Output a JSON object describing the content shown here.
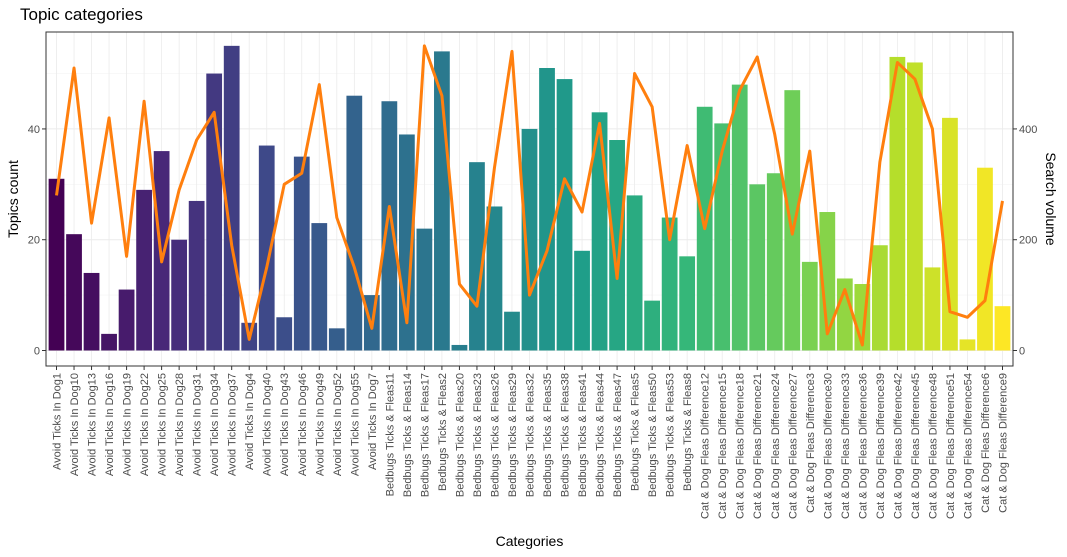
{
  "chart_data": {
    "type": "bar",
    "title": "Topic categories",
    "xlabel": "Categories",
    "ylabel": "Topics count",
    "y2label": "Search volume",
    "ylim": [
      -2.8,
      57.5
    ],
    "y_ticks": [
      0,
      20,
      40
    ],
    "y2lim": [
      -28,
      575
    ],
    "y2_ticks": [
      0,
      200,
      400
    ],
    "grid": true,
    "legend": "none",
    "line_color": "#ff7f0e",
    "bar_colormap": "viridis",
    "categories": [
      "Avoid Ticks In Dog1",
      "Avoid Ticks In Dog10",
      "Avoid Ticks In Dog13",
      "Avoid Ticks In Dog16",
      "Avoid Ticks In Dog19",
      "Avoid Ticks In Dog22",
      "Avoid Ticks In Dog25",
      "Avoid Ticks In Dog28",
      "Avoid Ticks In Dog31",
      "Avoid Ticks In Dog34",
      "Avoid Ticks In Dog37",
      "Avoid Ticks In Dog4",
      "Avoid Ticks In Dog40",
      "Avoid Ticks In Dog43",
      "Avoid Ticks In Dog46",
      "Avoid Ticks In Dog49",
      "Avoid Ticks In Dog52",
      "Avoid Ticks In Dog55",
      "Avoid Ticks In Dog7",
      "Bedbugs Ticks & Fleas11",
      "Bedbugs Ticks & Fleas14",
      "Bedbugs Ticks & Fleas17",
      "Bedbugs Ticks & Fleas2",
      "Bedbugs Ticks & Fleas20",
      "Bedbugs Ticks & Fleas23",
      "Bedbugs Ticks & Fleas26",
      "Bedbugs Ticks & Fleas29",
      "Bedbugs Ticks & Fleas32",
      "Bedbugs Ticks & Fleas35",
      "Bedbugs Ticks & Fleas38",
      "Bedbugs Ticks & Fleas41",
      "Bedbugs Ticks & Fleas44",
      "Bedbugs Ticks & Fleas47",
      "Bedbugs Ticks & Fleas5",
      "Bedbugs Ticks & Fleas50",
      "Bedbugs Ticks & Fleas53",
      "Bedbugs Ticks & Fleas8",
      "Cat & Dog Fleas Difference12",
      "Cat & Dog Fleas Difference15",
      "Cat & Dog Fleas Difference18",
      "Cat & Dog Fleas Difference21",
      "Cat & Dog Fleas Difference24",
      "Cat & Dog Fleas Difference27",
      "Cat & Dog Fleas Difference3",
      "Cat & Dog Fleas Difference30",
      "Cat & Dog Fleas Difference33",
      "Cat & Dog Fleas Difference36",
      "Cat & Dog Fleas Difference39",
      "Cat & Dog Fleas Difference42",
      "Cat & Dog Fleas Difference45",
      "Cat & Dog Fleas Difference48",
      "Cat & Dog Fleas Difference51",
      "Cat & Dog Fleas Difference54",
      "Cat & Dog Fleas Difference6",
      "Cat & Dog Fleas Difference9"
    ],
    "series": [
      {
        "type": "bar",
        "axis": "left",
        "values": [
          31,
          21,
          14,
          3,
          11,
          29,
          36,
          20,
          27,
          50,
          55,
          5,
          37,
          6,
          35,
          23,
          4,
          46,
          10,
          45,
          39,
          22,
          54,
          1,
          34,
          26,
          7,
          40,
          51,
          49,
          18,
          43,
          38,
          28,
          9,
          24,
          17,
          44,
          41,
          48,
          30,
          32,
          47,
          16,
          25,
          13,
          12,
          19,
          53,
          52,
          15,
          42,
          2,
          33,
          8
        ]
      },
      {
        "type": "line",
        "axis": "right",
        "values": [
          280,
          510,
          230,
          420,
          170,
          450,
          160,
          290,
          380,
          430,
          190,
          20,
          150,
          300,
          320,
          480,
          240,
          150,
          40,
          260,
          50,
          550,
          460,
          120,
          80,
          330,
          540,
          100,
          180,
          310,
          250,
          410,
          130,
          500,
          440,
          200,
          370,
          220,
          360,
          470,
          530,
          390,
          210,
          360,
          30,
          110,
          10,
          340,
          520,
          490,
          400,
          70,
          60,
          90,
          270
        ]
      }
    ]
  }
}
